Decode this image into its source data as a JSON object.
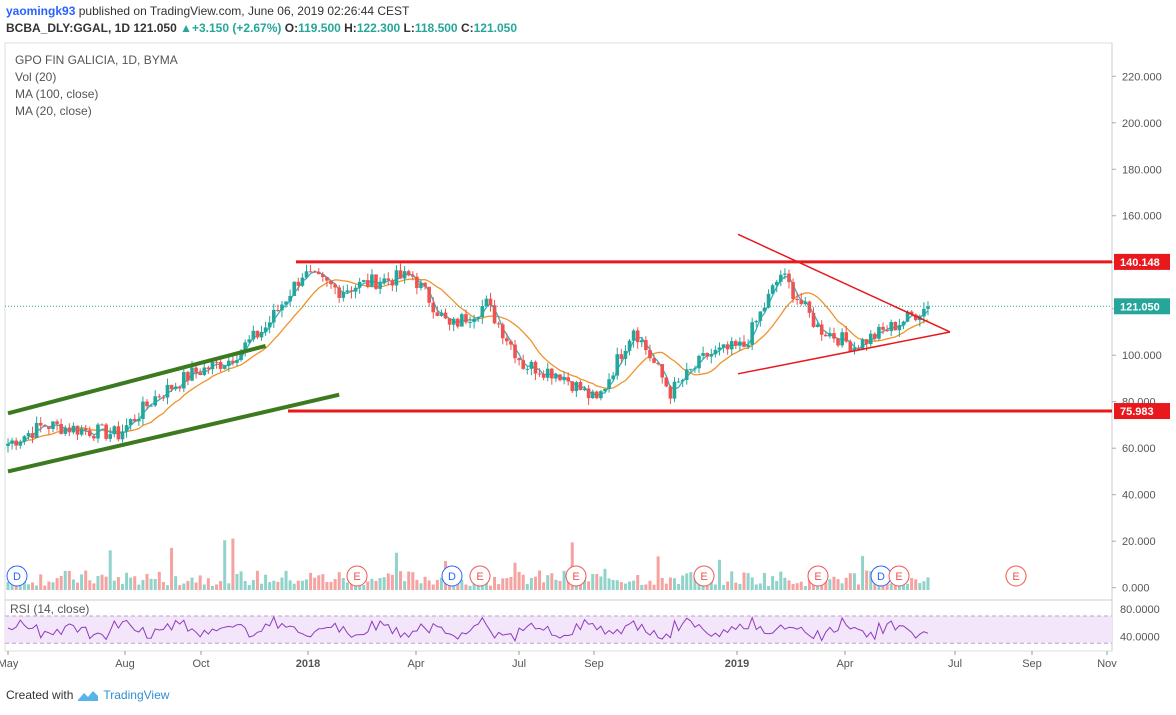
{
  "header": {
    "username": "yaomingk93",
    "published_text": "published on TradingView.com, June 06, 2019 02:26:44 CEST",
    "symbol": "BCBA_DLY:GGAL, 1D",
    "last": "121.050",
    "change": "+3.150 (+2.67%)",
    "o_label": "O:",
    "o": "119.500",
    "h_label": "H:",
    "h": "122.300",
    "l_label": "L:",
    "l": "118.500",
    "c_label": "C:",
    "c": "121.050"
  },
  "legend": {
    "title": "GPO FIN GALICIA, 1D, BYMA",
    "vol": "Vol (20)",
    "ma100": "MA (100, close)",
    "ma20": "MA (20, close)"
  },
  "rsi_label": "RSI (14, close)",
  "footer": {
    "created_with": "Created with",
    "brand": "TradingView"
  },
  "colors": {
    "up": "#26a69a",
    "down": "#ef5350",
    "ma20": "#2ab5c8",
    "ma100": "#f0932b",
    "resistance": "#e8181d",
    "channel": "#3c7a1f",
    "rsi": "#8e3bbd",
    "rsi_band": "#f3e6fb"
  },
  "chart_data": {
    "type": "candlestick",
    "x": [
      "May 2017",
      "Aug 2017",
      "Oct 2017",
      "2018",
      "Apr 2018",
      "Jul 2018",
      "Sep 2018",
      "2019",
      "Apr 2019",
      "Jul 2019",
      "Sep 2019",
      "Nov 2019"
    ],
    "close_series": [
      {
        "date": "May 2017",
        "value": 62
      },
      {
        "date": "Jun 2017",
        "value": 70
      },
      {
        "date": "Jul 2017",
        "value": 68
      },
      {
        "date": "Aug 2017",
        "value": 66
      },
      {
        "date": "Sep 2017",
        "value": 82
      },
      {
        "date": "Oct 2017",
        "value": 92
      },
      {
        "date": "Nov 2017",
        "value": 98
      },
      {
        "date": "Dec 2017",
        "value": 112
      },
      {
        "date": "Jan 2018",
        "value": 135
      },
      {
        "date": "Feb 2018",
        "value": 128
      },
      {
        "date": "Mar 2018",
        "value": 132
      },
      {
        "date": "Apr 2018",
        "value": 134
      },
      {
        "date": "May 2018",
        "value": 112
      },
      {
        "date": "Jun 2018",
        "value": 122
      },
      {
        "date": "Jul 2018",
        "value": 96
      },
      {
        "date": "Aug 2018",
        "value": 92
      },
      {
        "date": "Sep 2018",
        "value": 80
      },
      {
        "date": "Oct 2018",
        "value": 112
      },
      {
        "date": "Nov 2018",
        "value": 84
      },
      {
        "date": "Dec 2018",
        "value": 100
      },
      {
        "date": "Jan 2019",
        "value": 104
      },
      {
        "date": "Feb 2019",
        "value": 135
      },
      {
        "date": "Mar 2019",
        "value": 112
      },
      {
        "date": "Apr 2019",
        "value": 104
      },
      {
        "date": "May 2019",
        "value": 112
      },
      {
        "date": "Jun 2019",
        "value": 121.05
      }
    ],
    "y_ticks": [
      "220.000",
      "200.000",
      "180.000",
      "160.000",
      "140.000",
      "120.000",
      "100.000",
      "80.000",
      "60.000",
      "40.000",
      "20.000",
      "0.000"
    ],
    "ylim": [
      -1,
      227
    ],
    "levels": [
      {
        "label": "140.148",
        "value": 140.148
      },
      {
        "label": "121.050",
        "value": 121.05
      },
      {
        "label": "75.983",
        "value": 75.983
      }
    ],
    "triangle": {
      "upper": [
        {
          "date": "Jan 2019",
          "value": 152
        },
        {
          "date": "Jun 2019",
          "value": 110
        }
      ],
      "lower": [
        {
          "date": "Jan 2019",
          "value": 92
        },
        {
          "date": "Jun 2019",
          "value": 110
        }
      ]
    },
    "channel": {
      "upper": [
        {
          "date": "May 2017",
          "value": 75
        },
        {
          "date": "Dec 2017",
          "value": 104
        }
      ],
      "lower": [
        {
          "date": "May 2017",
          "value": 50
        },
        {
          "date": "Feb 2018",
          "value": 83
        }
      ]
    },
    "event_markers": [
      "D",
      "E",
      "D",
      "E",
      "E",
      "E",
      "E",
      "D",
      "E",
      "E"
    ],
    "rsi_ticks": [
      "80.0000",
      "40.0000"
    ],
    "rsi_ylim": [
      20,
      92
    ],
    "rsi_bands": [
      70,
      30
    ]
  }
}
